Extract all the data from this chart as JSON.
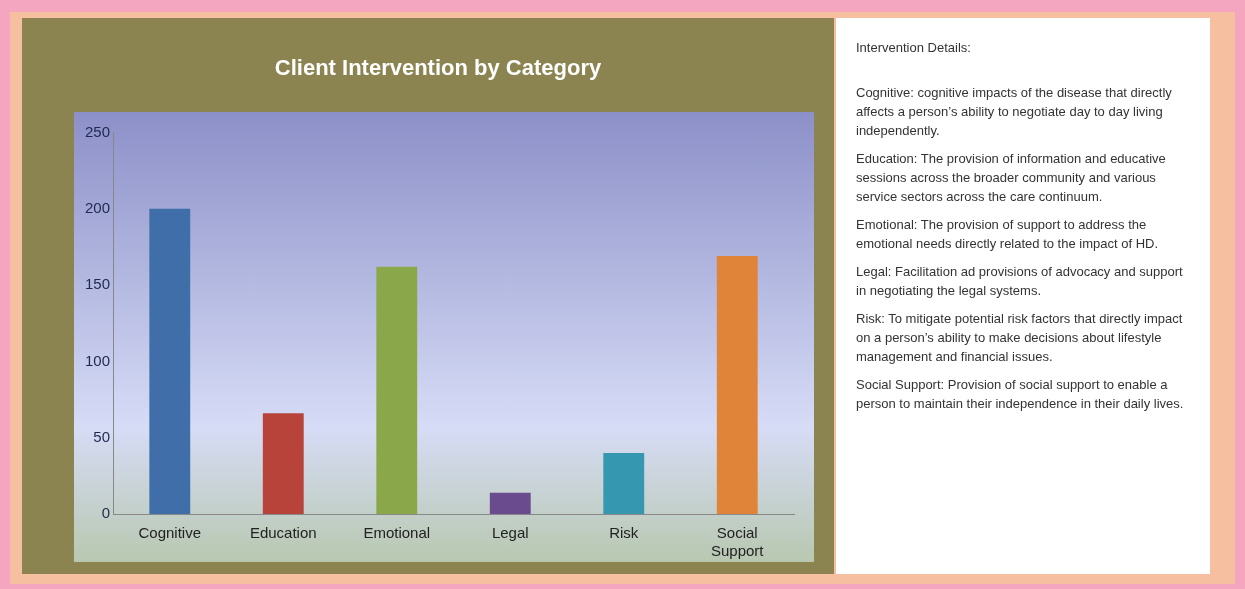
{
  "chart_data": {
    "type": "bar",
    "title": "Client Intervention by Category",
    "categories": [
      "Cognitive",
      "Education",
      "Emotional",
      "Legal",
      "Risk",
      "Social Support"
    ],
    "values": [
      200,
      66,
      162,
      14,
      40,
      169
    ],
    "colors": [
      "#3f6ea8",
      "#b8433a",
      "#8aa84a",
      "#6a4b8e",
      "#3597b0",
      "#e0843a"
    ],
    "ylim": [
      0,
      250
    ],
    "yticks": [
      0,
      50,
      100,
      150,
      200,
      250
    ],
    "grid": false,
    "legend": false,
    "annotations": [
      "Intervention Details:",
      "Cognitive: cognitive impacts of the disease that directly affects a person’s ability to negotiate day to day living independently.",
      "Education: The provision of information and educative sessions across the broader community and various service sectors across the care continuum.",
      "Emotional: The provision of support to address the emotional needs directly related to the impact of HD.",
      "Legal:  Facilitation ad provisions of advocacy and support in negotiating the legal systems.",
      "Risk:  To mitigate potential risk factors that directly impact on a person’s ability to make decisions about lifestyle management and financial issues.",
      "Social Support: Provision of social support to enable a person to maintain their independence in their daily lives."
    ]
  }
}
